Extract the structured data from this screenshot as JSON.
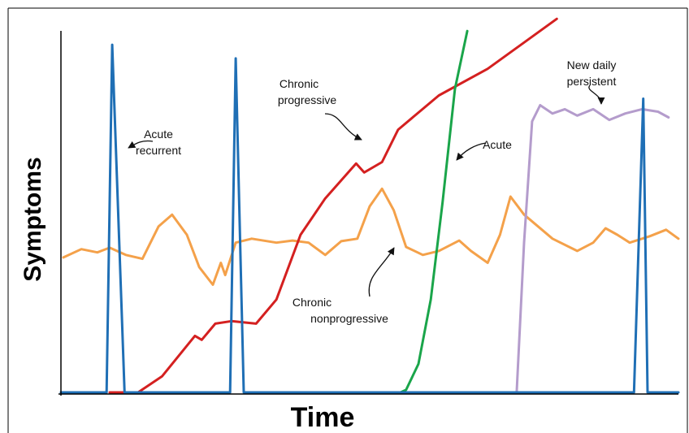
{
  "chart_data": {
    "type": "line",
    "xlabel": "Time",
    "ylabel": "Symptoms",
    "xlim": [
      0,
      100
    ],
    "ylim": [
      0,
      100
    ],
    "annotations": [
      {
        "lines": [
          "Acute",
          "recurrent"
        ]
      },
      {
        "lines": [
          "Chronic",
          "progressive"
        ]
      },
      {
        "lines": [
          "Acute"
        ]
      },
      {
        "lines": [
          "New daily",
          "persistent"
        ]
      },
      {
        "lines": [
          "Chronic",
          "nonprogressive"
        ]
      }
    ],
    "series": [
      {
        "color": "#f4a14a",
        "x": [
          0.4,
          3.3,
          5.9,
          7.9,
          10.5,
          13.2,
          15.8,
          18,
          20.4,
          22.4,
          24.6,
          25.9,
          26.6,
          28.3,
          30.9,
          34.9,
          37.5,
          40.1,
          42.8,
          45.4,
          48,
          50,
          52,
          53.9,
          55.9,
          58.6,
          61.2,
          64.5,
          66.4,
          69.1,
          71.1,
          72.8,
          75,
          79.6,
          83.6,
          86.2,
          88.2,
          90.1,
          92.1,
          95.4,
          98,
          100
        ],
        "values": [
          37.5,
          39.8,
          38.9,
          40.2,
          38.2,
          37.1,
          46.1,
          49.4,
          43.8,
          34.8,
          29.9,
          36,
          32.6,
          41.6,
          42.7,
          41.6,
          42.2,
          41.6,
          38.2,
          42,
          42.7,
          51.7,
          56.6,
          50.6,
          40.4,
          38.2,
          39.3,
          42.2,
          39.3,
          36,
          43.8,
          54.4,
          49.4,
          42.7,
          39.3,
          41.6,
          45.6,
          43.8,
          41.6,
          43.4,
          45.2,
          42.7
        ]
      },
      {
        "color": "#d42020",
        "x": [
          7.9,
          12.5,
          16.4,
          21.7,
          22.8,
          25,
          27.6,
          31.6,
          34.9,
          38.8,
          42.8,
          47.8,
          49.1,
          52,
          54.6,
          61.2,
          69.1,
          80.3
        ],
        "values": [
          0,
          0,
          4.5,
          15.7,
          14.6,
          19.1,
          19.8,
          19.1,
          25.8,
          43.8,
          53.9,
          63.6,
          61.1,
          64,
          73,
          82.5,
          89.9,
          103.8
        ]
      },
      {
        "color": "#1aa54a",
        "x": [
          55,
          55.9,
          57.9,
          59.9,
          61.8,
          63.8,
          65.8
        ],
        "values": [
          0,
          0.7,
          7.9,
          25.8,
          52.8,
          84.3,
          100.4
        ]
      },
      {
        "color": "#b49ccc",
        "x": [
          73.8,
          75,
          76.3,
          77.6,
          79.6,
          81.6,
          83.6,
          86.2,
          88.8,
          91.4,
          94.1,
          96.7,
          98.4
        ],
        "values": [
          0,
          41.6,
          75.3,
          79.8,
          77.5,
          78.7,
          76.9,
          78.7,
          75.7,
          77.5,
          78.7,
          78,
          76.4
        ]
      },
      {
        "color": "#1f6fb5",
        "x": [
          0,
          7.4,
          8.3,
          10.3,
          27.4,
          28.3,
          29.6,
          92.8,
          94.3,
          95.0,
          100
        ],
        "values": [
          0,
          0,
          96.6,
          0,
          0,
          92.8,
          0,
          0,
          81.6,
          0,
          0
        ]
      }
    ]
  }
}
